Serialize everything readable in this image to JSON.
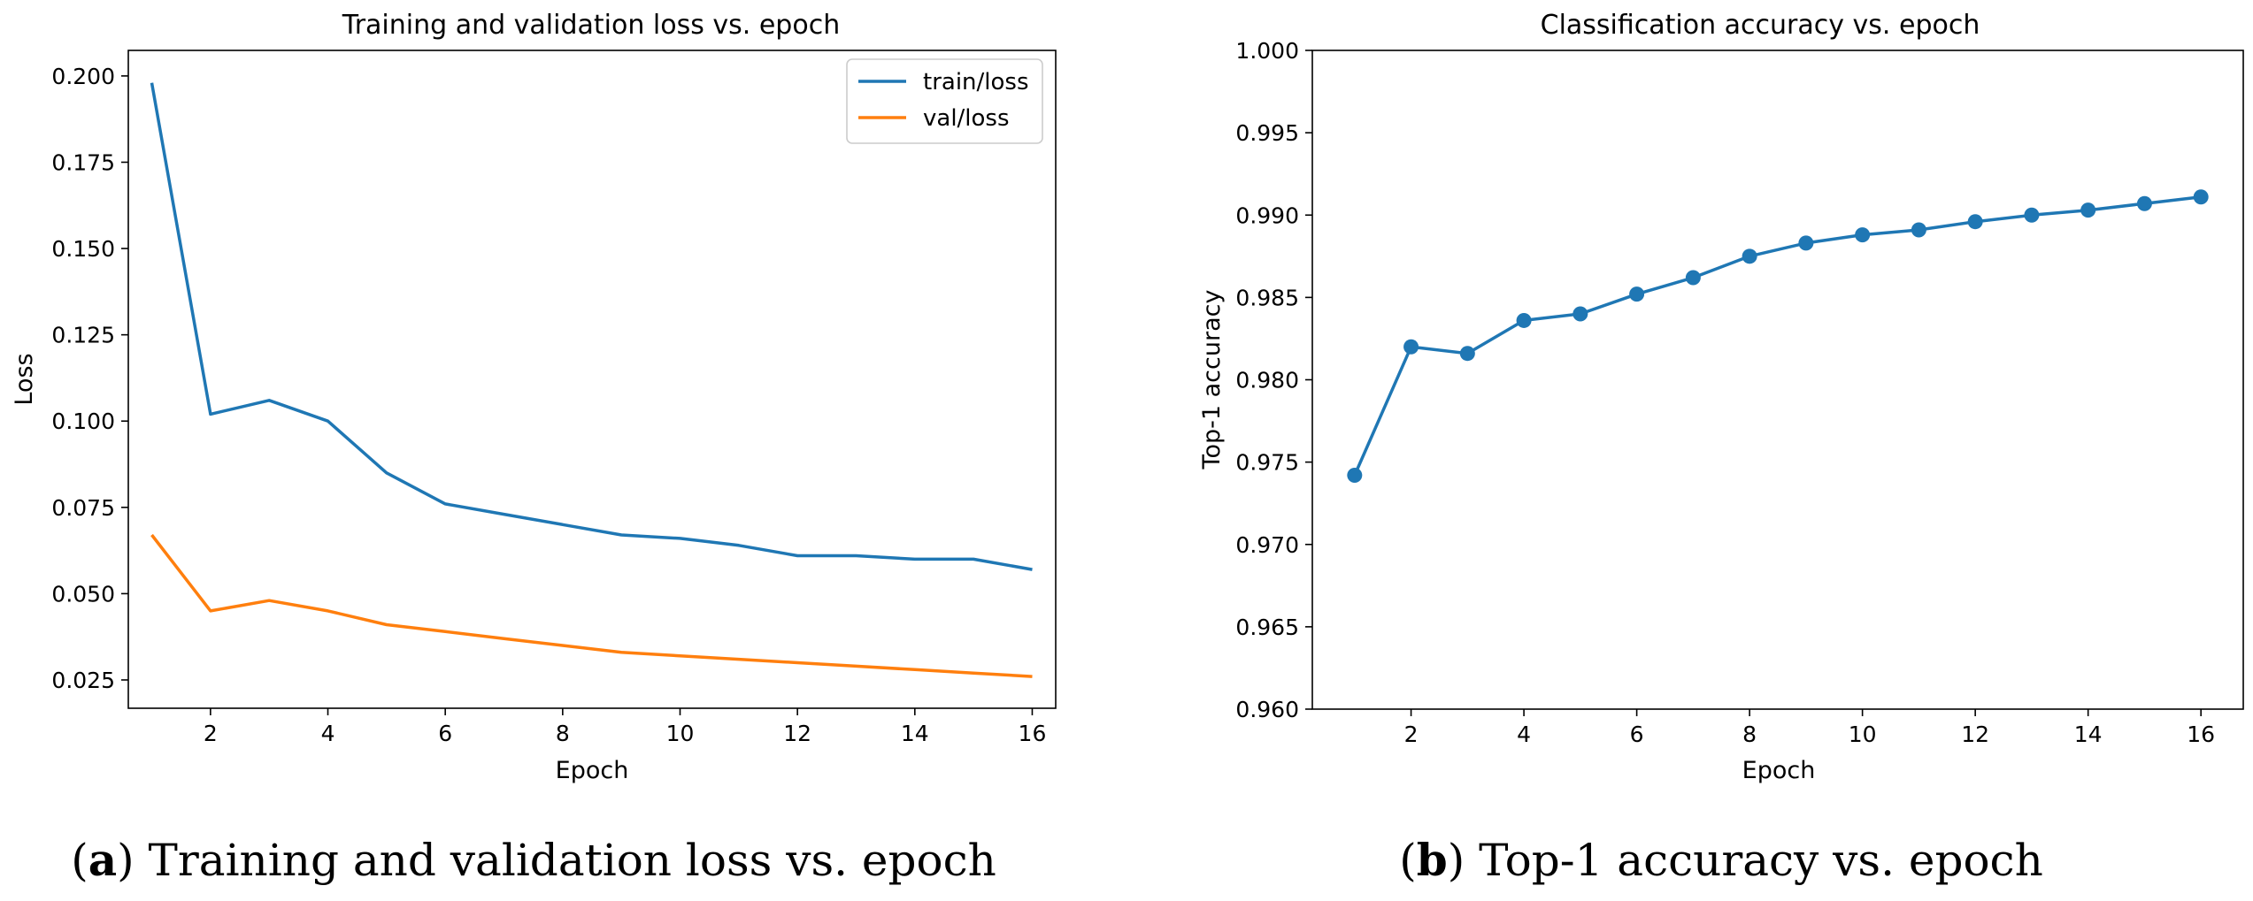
{
  "chart_data": [
    {
      "type": "line",
      "title": "Training and validation loss vs. epoch",
      "xlabel": "Epoch",
      "ylabel": "Loss",
      "xlim": [
        0.6,
        16.4
      ],
      "ylim": [
        0.0168,
        0.2074
      ],
      "xticks": [
        2,
        4,
        6,
        8,
        10,
        12,
        14,
        16
      ],
      "yticks": [
        0.025,
        0.05,
        0.075,
        0.1,
        0.125,
        0.15,
        0.175,
        0.2
      ],
      "ytick_labels": [
        "0.025",
        "0.050",
        "0.075",
        "0.100",
        "0.125",
        "0.150",
        "0.175",
        "0.200"
      ],
      "grid": false,
      "legend": "top-right",
      "x": [
        1,
        2,
        3,
        4,
        5,
        6,
        7,
        8,
        9,
        10,
        11,
        12,
        13,
        14,
        15,
        16
      ],
      "series": [
        {
          "name": "train/loss",
          "color": "#1f77b4",
          "values": [
            0.198,
            0.102,
            0.106,
            0.1,
            0.085,
            0.076,
            0.073,
            0.07,
            0.067,
            0.066,
            0.064,
            0.061,
            0.061,
            0.06,
            0.06,
            0.057
          ]
        },
        {
          "name": "val/loss",
          "color": "#ff7f0e",
          "values": [
            0.067,
            0.045,
            0.048,
            0.045,
            0.041,
            0.039,
            0.037,
            0.035,
            0.033,
            0.032,
            0.031,
            0.03,
            0.029,
            0.028,
            0.027,
            0.026
          ]
        }
      ],
      "caption_letter": "a",
      "caption_text": ") Training and validation loss vs. epoch"
    },
    {
      "type": "line",
      "title": "Classification accuracy vs. epoch",
      "xlabel": "Epoch",
      "ylabel": "Top-1 accuracy",
      "xlim": [
        0.25,
        16.75
      ],
      "ylim": [
        0.96,
        1.0
      ],
      "xticks": [
        2,
        4,
        6,
        8,
        10,
        12,
        14,
        16
      ],
      "yticks": [
        0.96,
        0.965,
        0.97,
        0.975,
        0.98,
        0.985,
        0.99,
        0.995,
        1.0
      ],
      "ytick_labels": [
        "0.960",
        "0.965",
        "0.970",
        "0.975",
        "0.980",
        "0.985",
        "0.990",
        "0.995",
        "1.000"
      ],
      "grid": false,
      "x": [
        1,
        2,
        3,
        4,
        5,
        6,
        7,
        8,
        9,
        10,
        11,
        12,
        13,
        14,
        15,
        16
      ],
      "series": [
        {
          "color": "#1f77b4",
          "markers": true,
          "values": [
            0.9742,
            0.982,
            0.9816,
            0.9836,
            0.984,
            0.9852,
            0.9862,
            0.9875,
            0.9883,
            0.9888,
            0.9891,
            0.9896,
            0.99,
            0.9903,
            0.9907,
            0.9911
          ]
        }
      ],
      "caption_letter": "b",
      "caption_text": ") Top-1 accuracy vs. epoch"
    }
  ]
}
